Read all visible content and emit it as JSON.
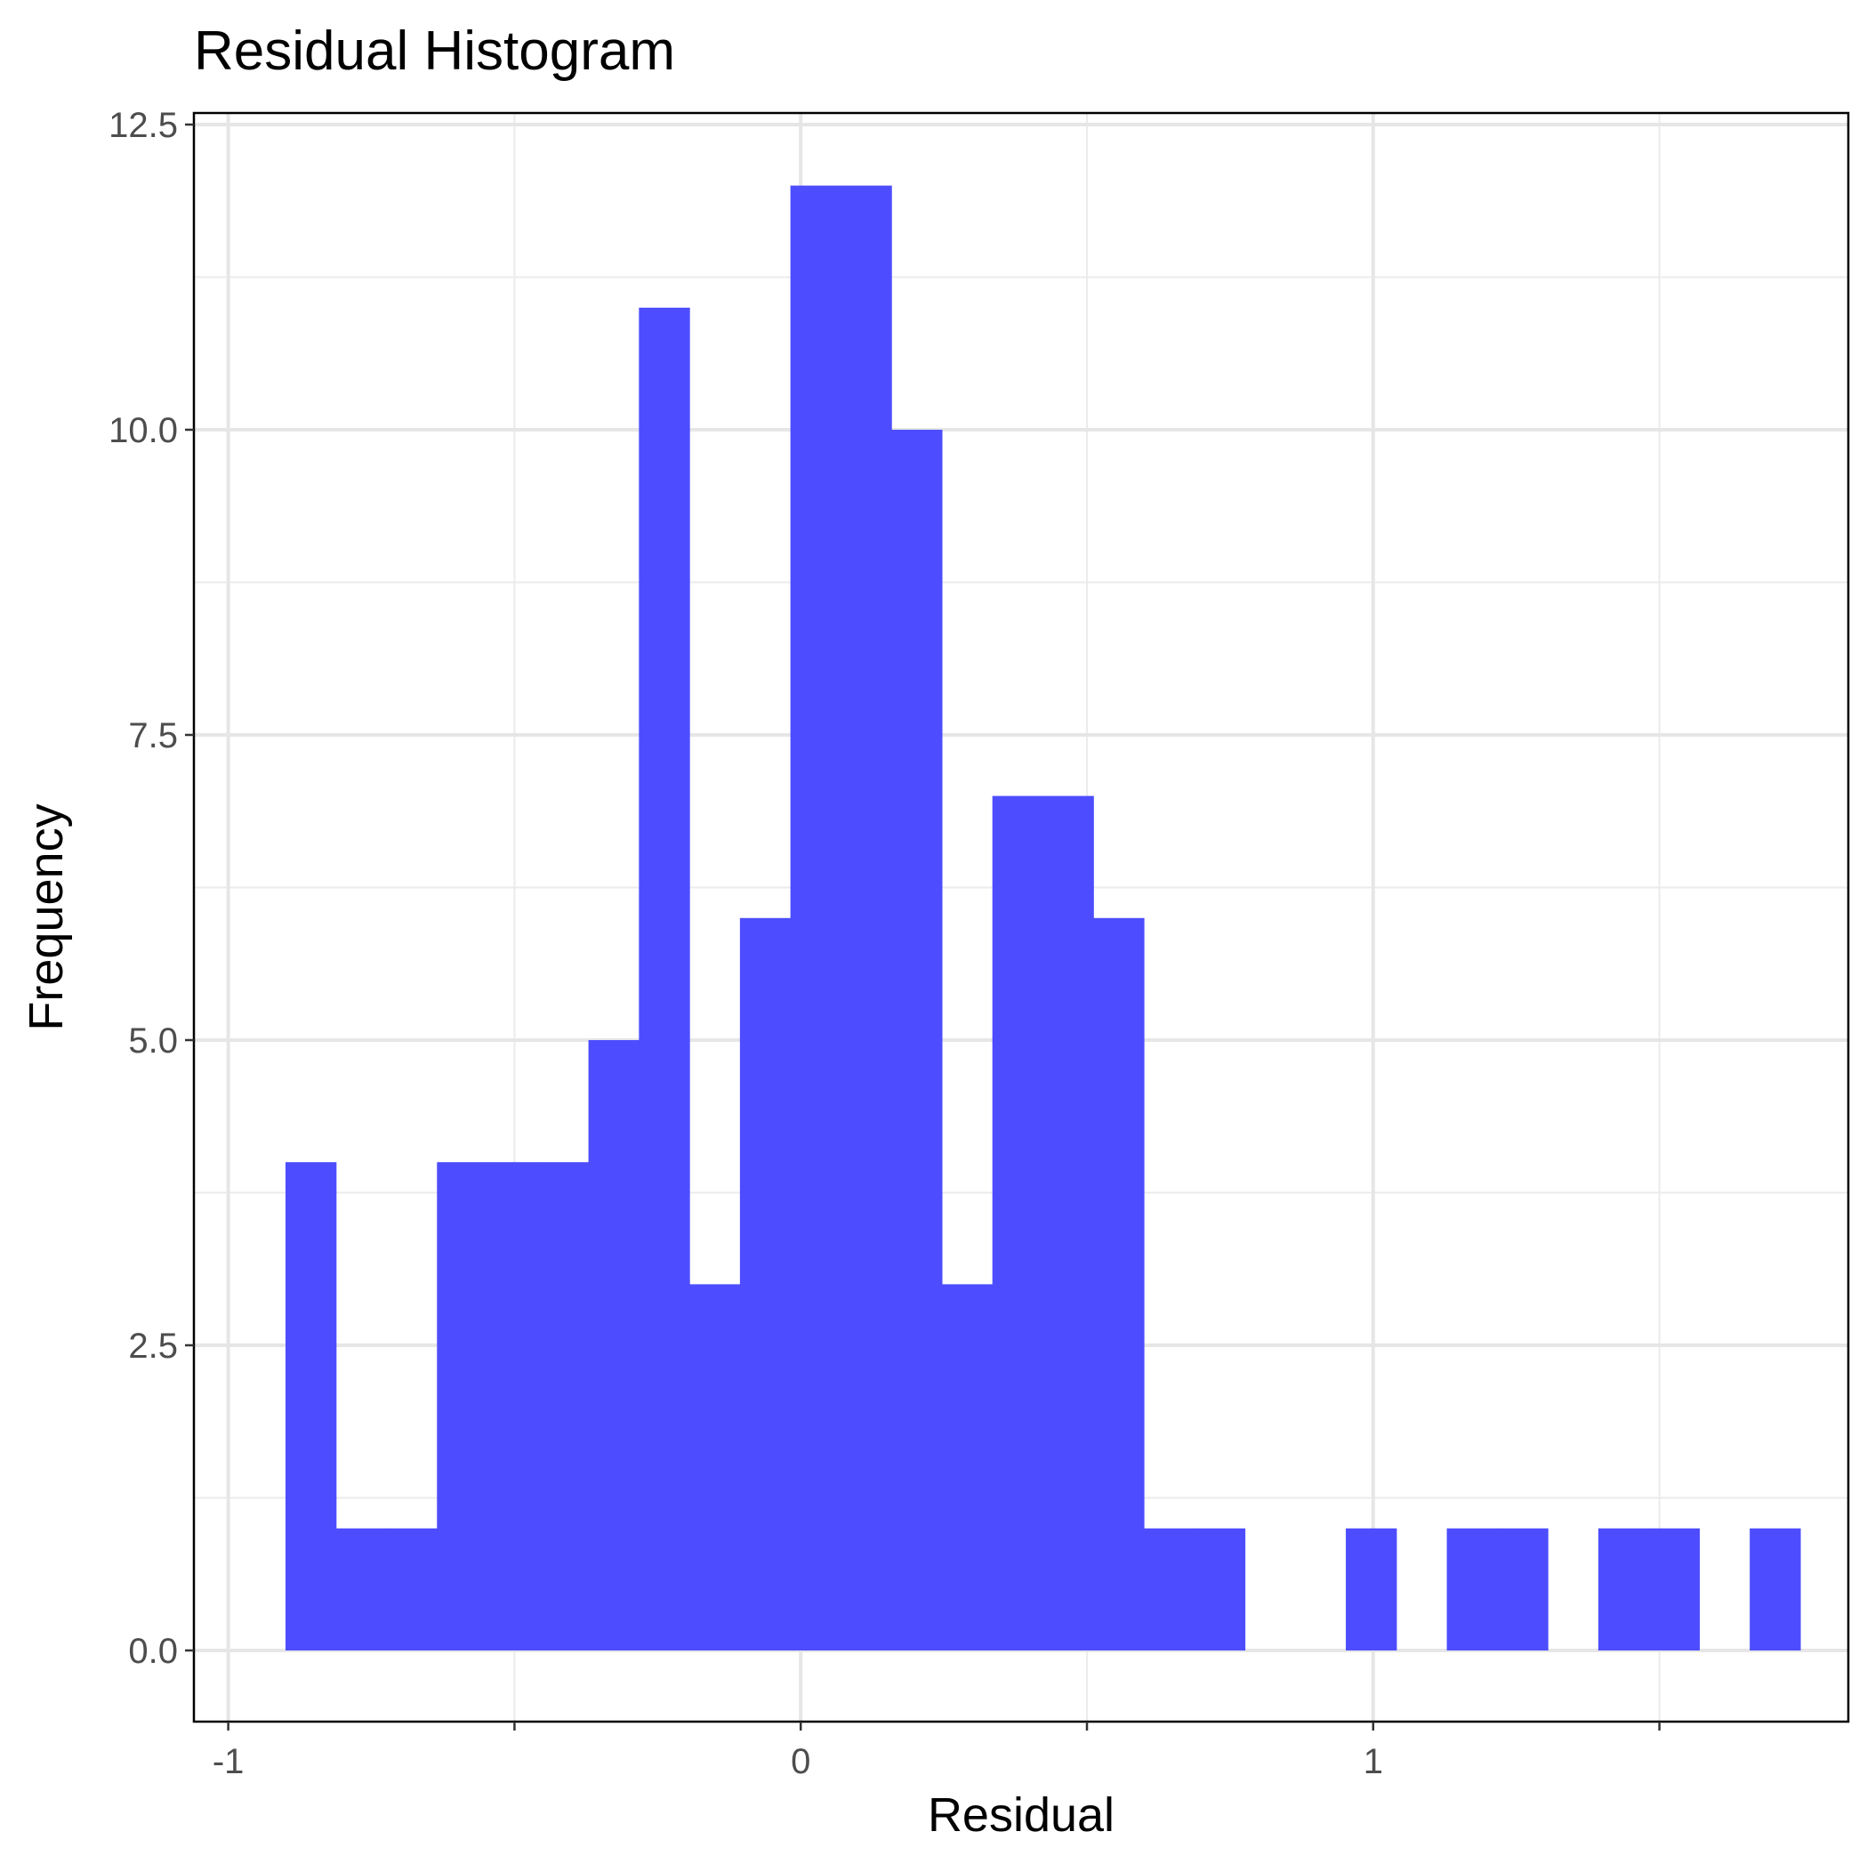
{
  "chart_data": {
    "type": "bar",
    "subtype": "histogram",
    "title": "Residual Histogram",
    "xlabel": "Residual",
    "ylabel": "Frequency",
    "xlim": [
      -1.06,
      1.83
    ],
    "ylim": [
      -0.6,
      12.5
    ],
    "x_ticks": [
      -1,
      0,
      1
    ],
    "x_tick_labels": [
      "-1",
      "0",
      "1"
    ],
    "x_minor_ticks": [
      -0.5,
      0.5,
      1.5
    ],
    "y_ticks": [
      0,
      2.5,
      5,
      7.5,
      10,
      12.5
    ],
    "y_tick_labels": [
      "0.0",
      "2.5",
      "5.0",
      "7.5",
      "10.0",
      "12.5"
    ],
    "y_minor_ticks": [
      1.25,
      3.75,
      6.25,
      8.75,
      11.25
    ],
    "grid": true,
    "bar_color": "#4d4dff",
    "bin_width": 0.0882,
    "bins": [
      {
        "x0": -0.9,
        "x1": -0.8118,
        "count": 4
      },
      {
        "x0": -0.8118,
        "x1": -0.7236,
        "count": 1
      },
      {
        "x0": -0.7236,
        "x1": -0.6354,
        "count": 1
      },
      {
        "x0": -0.6354,
        "x1": -0.5472,
        "count": 4
      },
      {
        "x0": -0.5472,
        "x1": -0.459,
        "count": 4
      },
      {
        "x0": -0.459,
        "x1": -0.3708,
        "count": 4
      },
      {
        "x0": -0.3708,
        "x1": -0.2826,
        "count": 5
      },
      {
        "x0": -0.2826,
        "x1": -0.1944,
        "count": 11
      },
      {
        "x0": -0.1944,
        "x1": -0.1062,
        "count": 3
      },
      {
        "x0": -0.1062,
        "x1": -0.018,
        "count": 6
      },
      {
        "x0": -0.018,
        "x1": 0.0702,
        "count": 12
      },
      {
        "x0": 0.0702,
        "x1": 0.1584,
        "count": 12
      },
      {
        "x0": 0.1584,
        "x1": 0.2466,
        "count": 10
      },
      {
        "x0": 0.2466,
        "x1": 0.3348,
        "count": 3
      },
      {
        "x0": 0.3348,
        "x1": 0.423,
        "count": 7
      },
      {
        "x0": 0.423,
        "x1": 0.5112,
        "count": 7
      },
      {
        "x0": 0.5112,
        "x1": 0.5994,
        "count": 6
      },
      {
        "x0": 0.5994,
        "x1": 0.6876,
        "count": 1
      },
      {
        "x0": 0.6876,
        "x1": 0.7758,
        "count": 1
      },
      {
        "x0": 0.7758,
        "x1": 0.864,
        "count": 0
      },
      {
        "x0": 0.864,
        "x1": 0.9522,
        "count": 0
      },
      {
        "x0": 0.9522,
        "x1": 1.0404,
        "count": 1
      },
      {
        "x0": 1.0404,
        "x1": 1.1286,
        "count": 0
      },
      {
        "x0": 1.1286,
        "x1": 1.2168,
        "count": 1
      },
      {
        "x0": 1.2168,
        "x1": 1.305,
        "count": 1
      },
      {
        "x0": 1.305,
        "x1": 1.3932,
        "count": 0
      },
      {
        "x0": 1.3932,
        "x1": 1.4814,
        "count": 1
      },
      {
        "x0": 1.4814,
        "x1": 1.5696,
        "count": 1
      },
      {
        "x0": 1.5696,
        "x1": 1.6578,
        "count": 0
      },
      {
        "x0": 1.6578,
        "x1": 1.746,
        "count": 1
      }
    ]
  }
}
